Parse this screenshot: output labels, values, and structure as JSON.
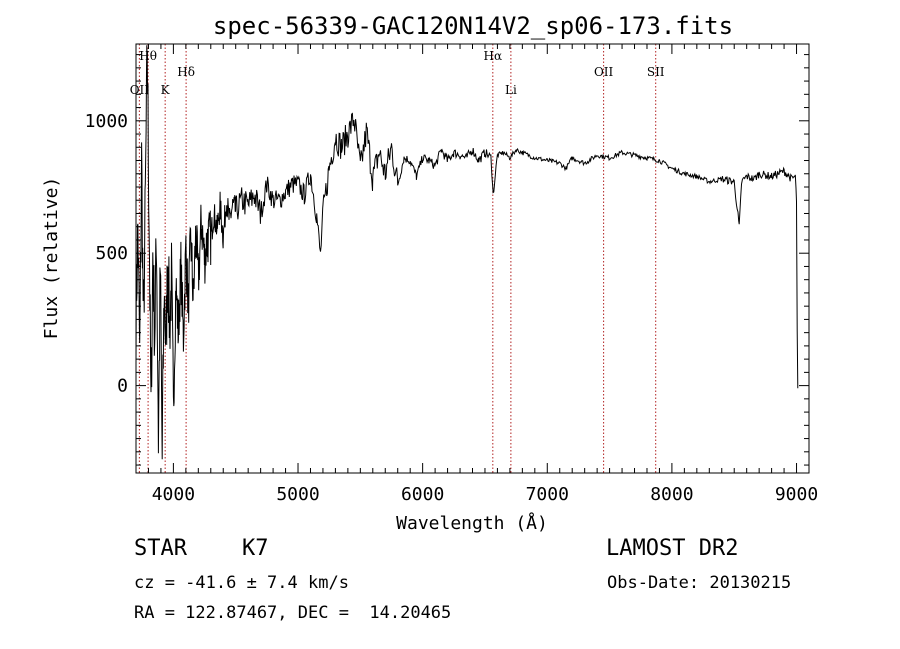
{
  "chart_data": {
    "type": "line",
    "title": "spec-56339-GAC120N14V2_sp06-173.fits",
    "xlabel": "Wavelength (Å)",
    "ylabel": "Flux (relative)",
    "xlim": [
      3700,
      9100
    ],
    "ylim": [
      -330,
      1290
    ],
    "xticks": [
      4000,
      5000,
      6000,
      7000,
      8000,
      9000
    ],
    "xtick_labels": [
      "4000",
      "5000",
      "6000",
      "7000",
      "8000",
      "9000"
    ],
    "yticks": [
      0,
      500,
      1000
    ],
    "ytick_labels": [
      "0",
      "500",
      "1000"
    ],
    "grid": false,
    "line_color": "#000000",
    "marker_color": "#b22222",
    "series": [
      {
        "values_x": [
          3700,
          3715,
          3730,
          3745,
          3760,
          3775,
          3790,
          3805,
          3820,
          3835,
          3850,
          3865,
          3880,
          3895,
          3910,
          3925,
          3940,
          3955,
          3970,
          3985,
          4000,
          4020,
          4040,
          4060,
          4080,
          4100,
          4120,
          4140,
          4160,
          4180,
          4200,
          4225,
          4250,
          4275,
          4300,
          4325,
          4350,
          4375,
          4400,
          4425,
          4450,
          4475,
          4500,
          4550,
          4600,
          4650,
          4700,
          4750,
          4800,
          4850,
          4900,
          4950,
          5000,
          5050,
          5100,
          5150,
          5180,
          5200,
          5250,
          5300,
          5350,
          5400,
          5450,
          5500,
          5550,
          5600,
          5650,
          5700,
          5750,
          5800,
          5850,
          5900,
          5950,
          6000,
          6050,
          6100,
          6150,
          6200,
          6250,
          6300,
          6350,
          6400,
          6450,
          6500,
          6550,
          6565,
          6600,
          6650,
          6700,
          6750,
          6800,
          6900,
          7000,
          7100,
          7150,
          7200,
          7300,
          7400,
          7500,
          7600,
          7700,
          7800,
          7900,
          8000,
          8100,
          8200,
          8300,
          8400,
          8500,
          8540,
          8560,
          8600,
          8660,
          8700,
          8800,
          8900,
          8960,
          8990,
          9000,
          9005,
          9010
        ],
        "values_y": [
          250,
          600,
          100,
          850,
          200,
          700,
          1280,
          650,
          -100,
          500,
          200,
          560,
          -200,
          440,
          -280,
          350,
          150,
          480,
          220,
          400,
          -100,
          380,
          200,
          450,
          180,
          520,
          300,
          560,
          320,
          580,
          400,
          620,
          480,
          560,
          560,
          650,
          590,
          680,
          560,
          700,
          620,
          680,
          660,
          700,
          680,
          720,
          650,
          760,
          700,
          700,
          730,
          760,
          760,
          720,
          800,
          640,
          490,
          650,
          820,
          940,
          900,
          950,
          1010,
          820,
          960,
          780,
          880,
          800,
          900,
          760,
          860,
          850,
          790,
          860,
          850,
          830,
          890,
          850,
          880,
          870,
          860,
          890,
          850,
          880,
          860,
          720,
          870,
          880,
          860,
          890,
          880,
          860,
          850,
          840,
          820,
          860,
          840,
          870,
          860,
          880,
          870,
          860,
          850,
          820,
          800,
          790,
          770,
          780,
          770,
          600,
          770,
          790,
          780,
          800,
          790,
          810,
          780,
          790,
          700,
          200,
          -10
        ]
      }
    ],
    "line_markers": [
      {
        "label": "OII",
        "x": 3727,
        "row": 3
      },
      {
        "label": "Hθ",
        "x": 3797,
        "row": 1
      },
      {
        "label": "K",
        "x": 3934,
        "row": 3
      },
      {
        "label": "Hδ",
        "x": 4102,
        "row": 2
      },
      {
        "label": "Hα",
        "x": 6563,
        "row": 1
      },
      {
        "label": "Li",
        "x": 6708,
        "row": 3
      },
      {
        "label": "OII",
        "x": 7452,
        "row": 2
      },
      {
        "label": "SII",
        "x": 7870,
        "row": 2
      }
    ]
  },
  "info": {
    "object_class": "STAR",
    "subclass": "K7",
    "survey": "LAMOST DR2",
    "redshift_text": "cz = -41.6 ± 7.4 km/s",
    "obs_date": "Obs-Date: 20130215",
    "radec": "RA = 122.87467, DEC =  14.20465"
  }
}
